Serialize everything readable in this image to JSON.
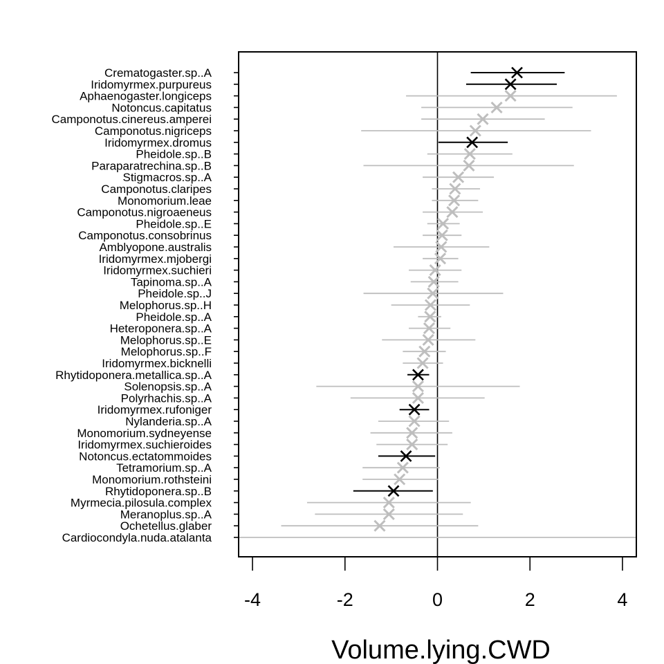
{
  "chart_data": {
    "type": "forest",
    "xlabel": "Volume.lying.CWD",
    "xlim": [
      -4.3,
      4.3
    ],
    "xticks": [
      -4,
      -2,
      0,
      2,
      4
    ],
    "reference_line": 0,
    "colors": {
      "significant": "#000000",
      "non_significant": "#bebebe"
    },
    "species": [
      {
        "name": "Crematogaster.sp..A",
        "estimate": 1.72,
        "lower": 0.72,
        "upper": 2.75,
        "significant": true
      },
      {
        "name": "Iridomyrmex.purpureus",
        "estimate": 1.58,
        "lower": 0.62,
        "upper": 2.58,
        "significant": true
      },
      {
        "name": "Aphaenogaster.longiceps",
        "estimate": 1.58,
        "lower": -0.68,
        "upper": 3.88,
        "significant": false
      },
      {
        "name": "Notoncus.capitatus",
        "estimate": 1.28,
        "lower": -0.35,
        "upper": 2.92,
        "significant": false
      },
      {
        "name": "Camponotus.cinereus.amperei",
        "estimate": 0.98,
        "lower": -0.35,
        "upper": 2.32,
        "significant": false
      },
      {
        "name": "Camponotus.nigriceps",
        "estimate": 0.82,
        "lower": -1.65,
        "upper": 3.32,
        "significant": false
      },
      {
        "name": "Iridomyrmex.dromus",
        "estimate": 0.75,
        "lower": 0.02,
        "upper": 1.52,
        "significant": true
      },
      {
        "name": "Pheidole.sp..B",
        "estimate": 0.7,
        "lower": -0.22,
        "upper": 1.62,
        "significant": false
      },
      {
        "name": "Paraparatrechina.sp..B",
        "estimate": 0.68,
        "lower": -1.6,
        "upper": 2.95,
        "significant": false
      },
      {
        "name": "Stigmacros.sp..A",
        "estimate": 0.45,
        "lower": -0.32,
        "upper": 1.22,
        "significant": false
      },
      {
        "name": "Camponotus.claripes",
        "estimate": 0.38,
        "lower": -0.12,
        "upper": 0.92,
        "significant": false
      },
      {
        "name": "Monomorium.leae",
        "estimate": 0.36,
        "lower": -0.12,
        "upper": 0.88,
        "significant": false
      },
      {
        "name": "Camponotus.nigroaeneus",
        "estimate": 0.32,
        "lower": -0.32,
        "upper": 0.98,
        "significant": false
      },
      {
        "name": "Pheidole.sp..E",
        "estimate": 0.12,
        "lower": -0.22,
        "upper": 0.48,
        "significant": false
      },
      {
        "name": "Camponotus.consobrinus",
        "estimate": 0.1,
        "lower": -0.32,
        "upper": 0.52,
        "significant": false
      },
      {
        "name": "Amblyopone.australis",
        "estimate": 0.08,
        "lower": -0.95,
        "upper": 1.12,
        "significant": false
      },
      {
        "name": "Iridomyrmex.mjobergi",
        "estimate": 0.06,
        "lower": -0.32,
        "upper": 0.45,
        "significant": false
      },
      {
        "name": "Iridomyrmex.suchieri",
        "estimate": -0.05,
        "lower": -0.62,
        "upper": 0.52,
        "significant": false
      },
      {
        "name": "Tapinoma.sp..A",
        "estimate": -0.08,
        "lower": -0.58,
        "upper": 0.45,
        "significant": false
      },
      {
        "name": "Pheidole.sp..J",
        "estimate": -0.1,
        "lower": -1.6,
        "upper": 1.42,
        "significant": false
      },
      {
        "name": "Melophorus.sp..H",
        "estimate": -0.15,
        "lower": -1.0,
        "upper": 0.7,
        "significant": false
      },
      {
        "name": "Pheidole.sp..A",
        "estimate": -0.16,
        "lower": -0.42,
        "upper": 0.08,
        "significant": false
      },
      {
        "name": "Heteroponera.sp..A",
        "estimate": -0.18,
        "lower": -0.62,
        "upper": 0.28,
        "significant": false
      },
      {
        "name": "Melophorus.sp..E",
        "estimate": -0.2,
        "lower": -1.2,
        "upper": 0.82,
        "significant": false
      },
      {
        "name": "Melophorus.sp..F",
        "estimate": -0.28,
        "lower": -0.75,
        "upper": 0.18,
        "significant": false
      },
      {
        "name": "Iridomyrmex.bicknelli",
        "estimate": -0.32,
        "lower": -0.75,
        "upper": 0.12,
        "significant": false
      },
      {
        "name": "Rhytidoponera.metallica.sp..A",
        "estimate": -0.42,
        "lower": -0.65,
        "upper": -0.18,
        "significant": true
      },
      {
        "name": "Solenopsis.sp..A",
        "estimate": -0.42,
        "lower": -2.62,
        "upper": 1.78,
        "significant": false
      },
      {
        "name": "Polyrhachis.sp..A",
        "estimate": -0.42,
        "lower": -1.88,
        "upper": 1.02,
        "significant": false
      },
      {
        "name": "Iridomyrmex.rufoniger",
        "estimate": -0.5,
        "lower": -0.82,
        "upper": -0.18,
        "significant": true
      },
      {
        "name": "Nylanderia.sp..A",
        "estimate": -0.5,
        "lower": -1.28,
        "upper": 0.25,
        "significant": false
      },
      {
        "name": "Monomorium.sydneyense",
        "estimate": -0.55,
        "lower": -1.45,
        "upper": 0.32,
        "significant": false
      },
      {
        "name": "Iridomyrmex.suchieroides",
        "estimate": -0.55,
        "lower": -1.32,
        "upper": 0.22,
        "significant": false
      },
      {
        "name": "Notoncus.ectatommoides",
        "estimate": -0.68,
        "lower": -1.28,
        "upper": -0.05,
        "significant": true
      },
      {
        "name": "Tetramorium.sp..A",
        "estimate": -0.75,
        "lower": -1.62,
        "upper": 0.05,
        "significant": false
      },
      {
        "name": "Monomorium.rothsteini",
        "estimate": -0.82,
        "lower": -1.62,
        "upper": 0.02,
        "significant": false
      },
      {
        "name": "Rhytidoponera.sp..B",
        "estimate": -0.95,
        "lower": -1.82,
        "upper": -0.1,
        "significant": true
      },
      {
        "name": "Myrmecia.pilosula.complex",
        "estimate": -1.05,
        "lower": -2.82,
        "upper": 0.72,
        "significant": false
      },
      {
        "name": "Meranoplus.sp..A",
        "estimate": -1.05,
        "lower": -2.65,
        "upper": 0.55,
        "significant": false
      },
      {
        "name": "Ochetellus.glaber",
        "estimate": -1.25,
        "lower": -3.38,
        "upper": 0.88,
        "significant": false
      },
      {
        "name": "Cardiocondyla.nuda.atalanta",
        "estimate": null,
        "lower": -4.3,
        "upper": 4.3,
        "significant": false
      }
    ]
  }
}
